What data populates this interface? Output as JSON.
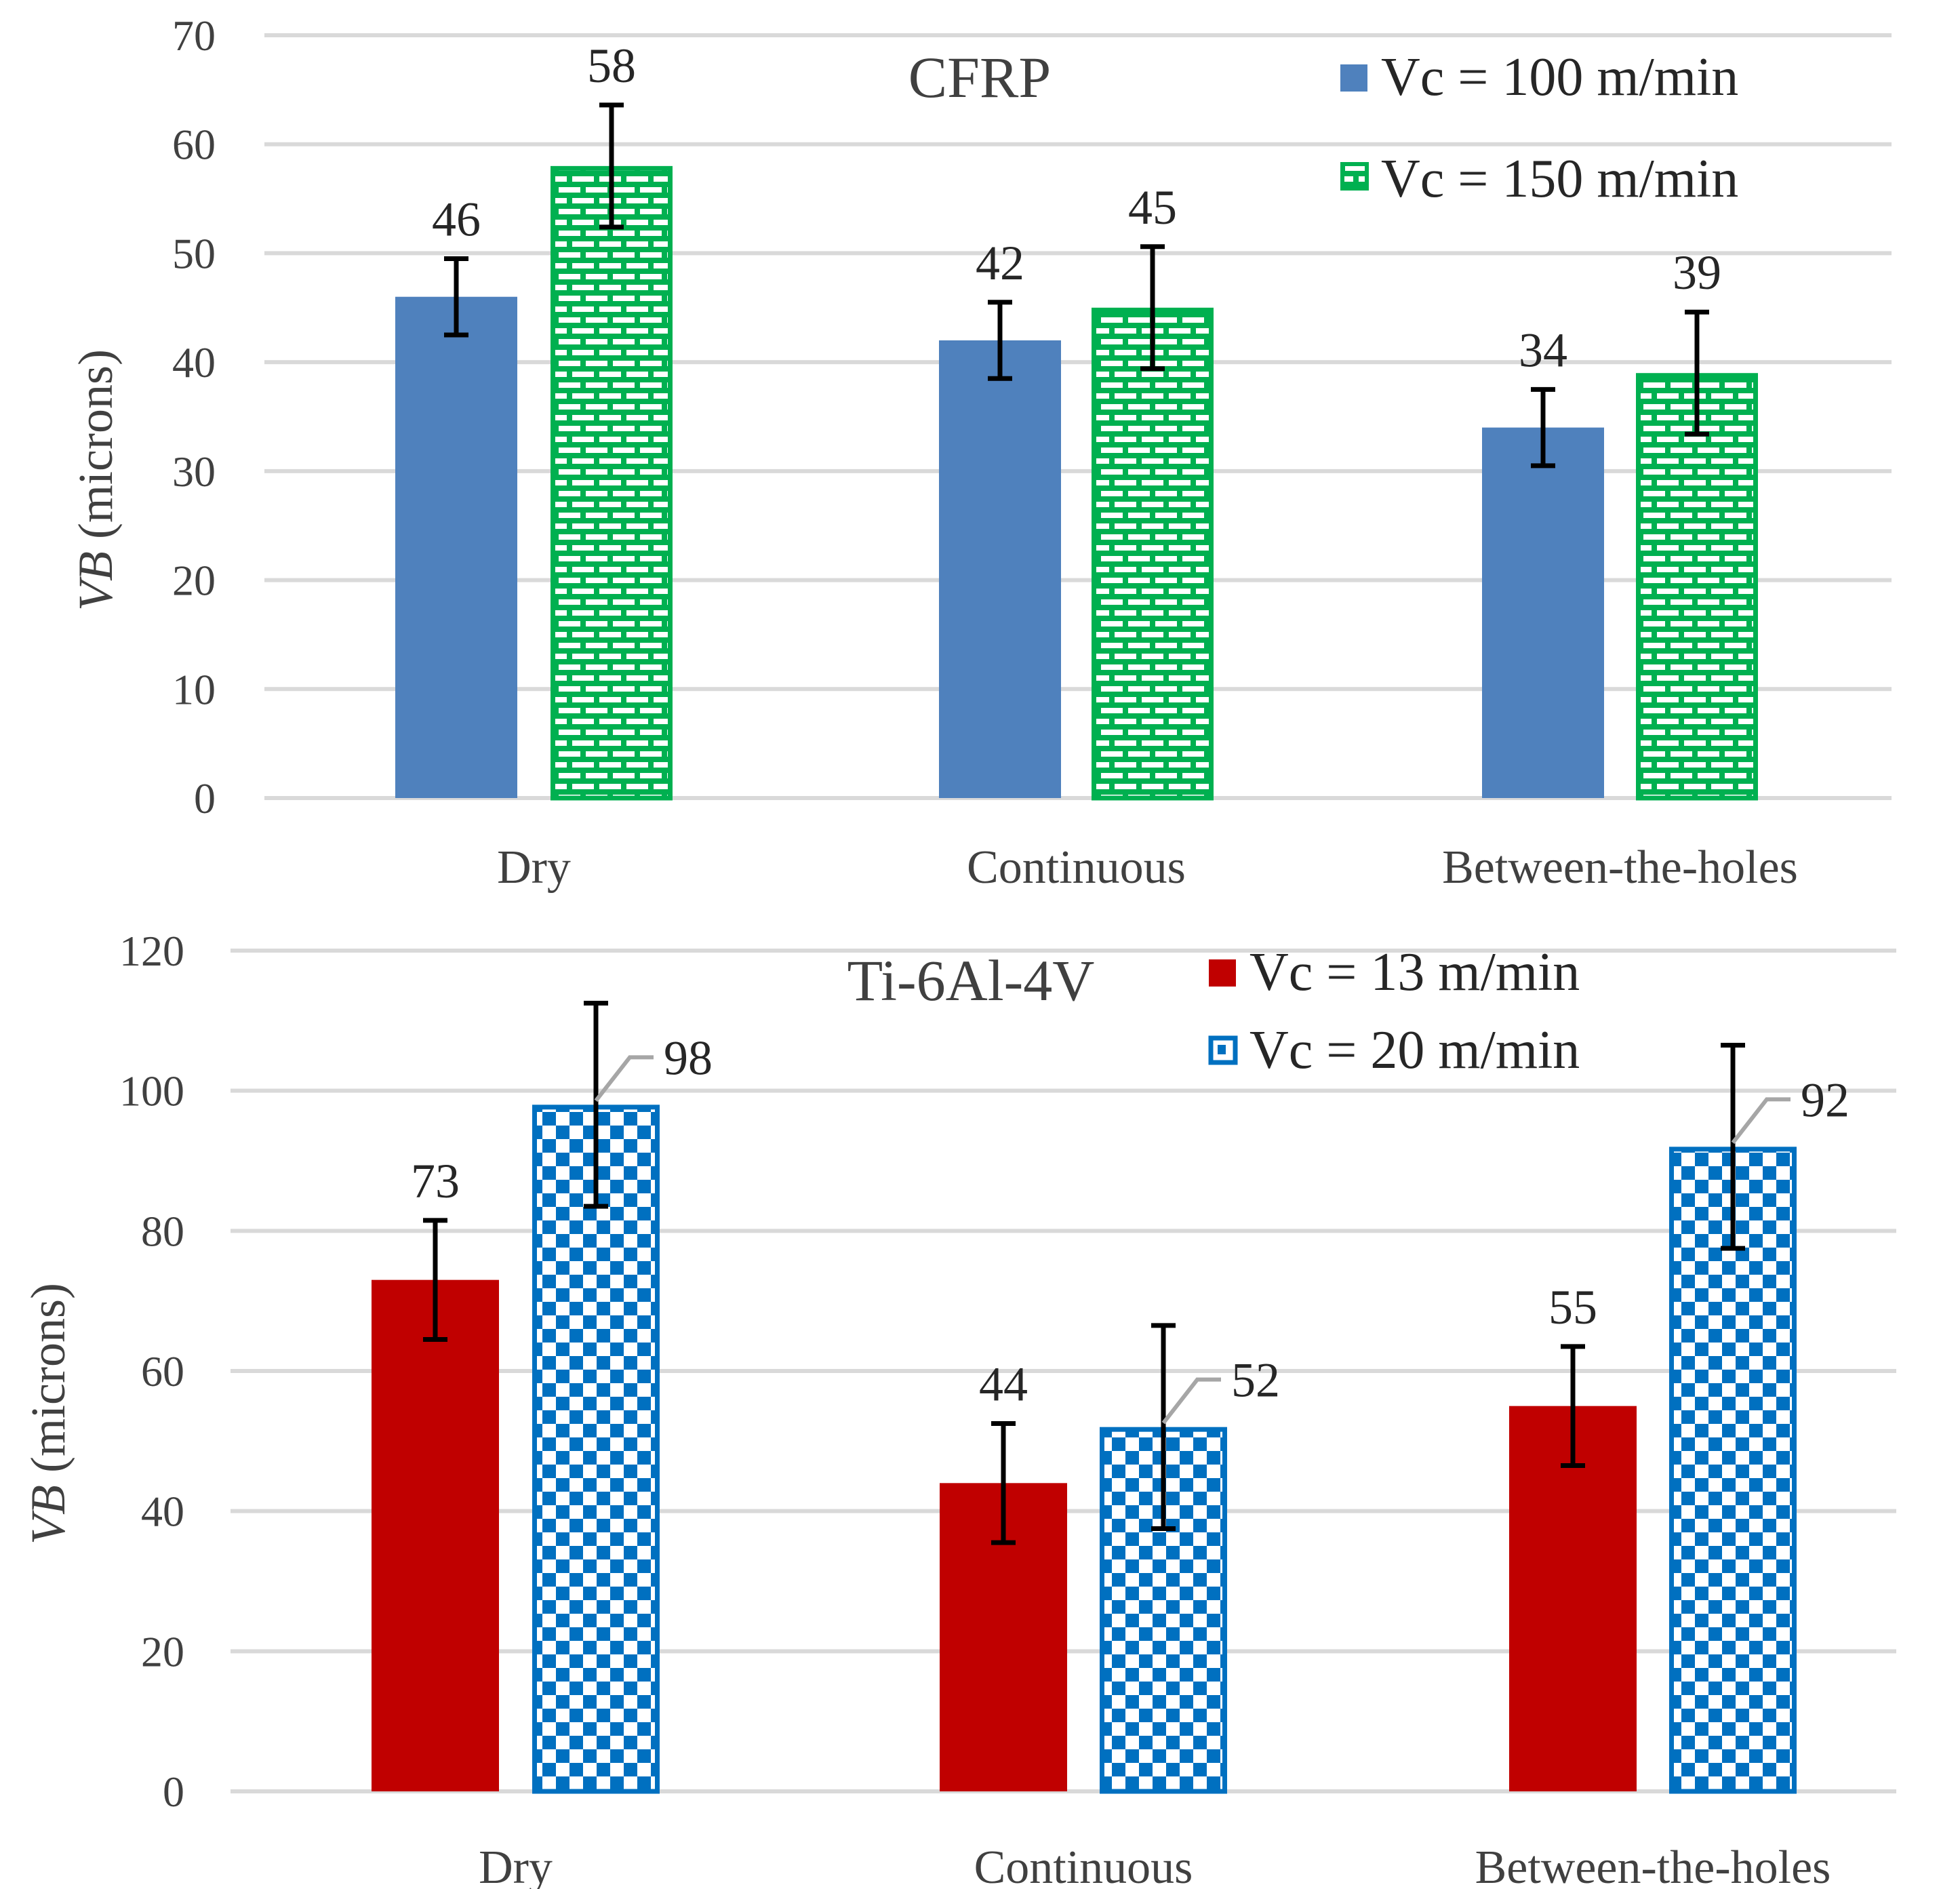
{
  "chart_data": [
    {
      "type": "bar",
      "title": "CFRP",
      "ylabel_italic": "VB",
      "ylabel": " (microns)",
      "xlabel": "",
      "categories": [
        "Dry",
        "Continuous",
        "Between-the-holes"
      ],
      "ylim": [
        0,
        70
      ],
      "yticks": [
        0,
        10,
        20,
        30,
        40,
        50,
        60,
        70
      ],
      "grid": true,
      "legend_position": "top-right",
      "series": [
        {
          "name": "Vc = 100 m/min",
          "color": "#4f81bd",
          "pattern": "solid",
          "values": [
            46,
            42,
            34
          ],
          "error": [
            3.5,
            3.5,
            3.5
          ],
          "labels": [
            "46",
            "42",
            "34"
          ]
        },
        {
          "name": "Vc = 150 m/min",
          "color": "#00b050",
          "pattern": "brick",
          "values": [
            58,
            45,
            39
          ],
          "error": [
            5.6,
            5.6,
            5.6
          ],
          "labels": [
            "58",
            "45",
            "39"
          ]
        }
      ]
    },
    {
      "type": "bar",
      "title": "Ti-6Al-4V",
      "ylabel_italic": "VB",
      "ylabel": " (microns)",
      "xlabel": "",
      "categories": [
        "Dry",
        "Continuous",
        "Between-the-holes"
      ],
      "ylim": [
        0,
        120
      ],
      "yticks": [
        0,
        20,
        40,
        60,
        80,
        100,
        120
      ],
      "grid": true,
      "legend_position": "top-right",
      "series": [
        {
          "name": "Vc = 13 m/min",
          "color": "#c00000",
          "pattern": "solid",
          "values": [
            73,
            44,
            55
          ],
          "error": [
            8.5,
            8.5,
            8.5
          ],
          "labels": [
            "73",
            "44",
            "55"
          ]
        },
        {
          "name": "Vc = 20 m/min",
          "color": "#0070c0",
          "pattern": "checker",
          "values": [
            98,
            52,
            92
          ],
          "error": [
            14.5,
            14.5,
            14.5
          ],
          "labels": [
            "98",
            "52",
            "92"
          ]
        }
      ]
    }
  ]
}
